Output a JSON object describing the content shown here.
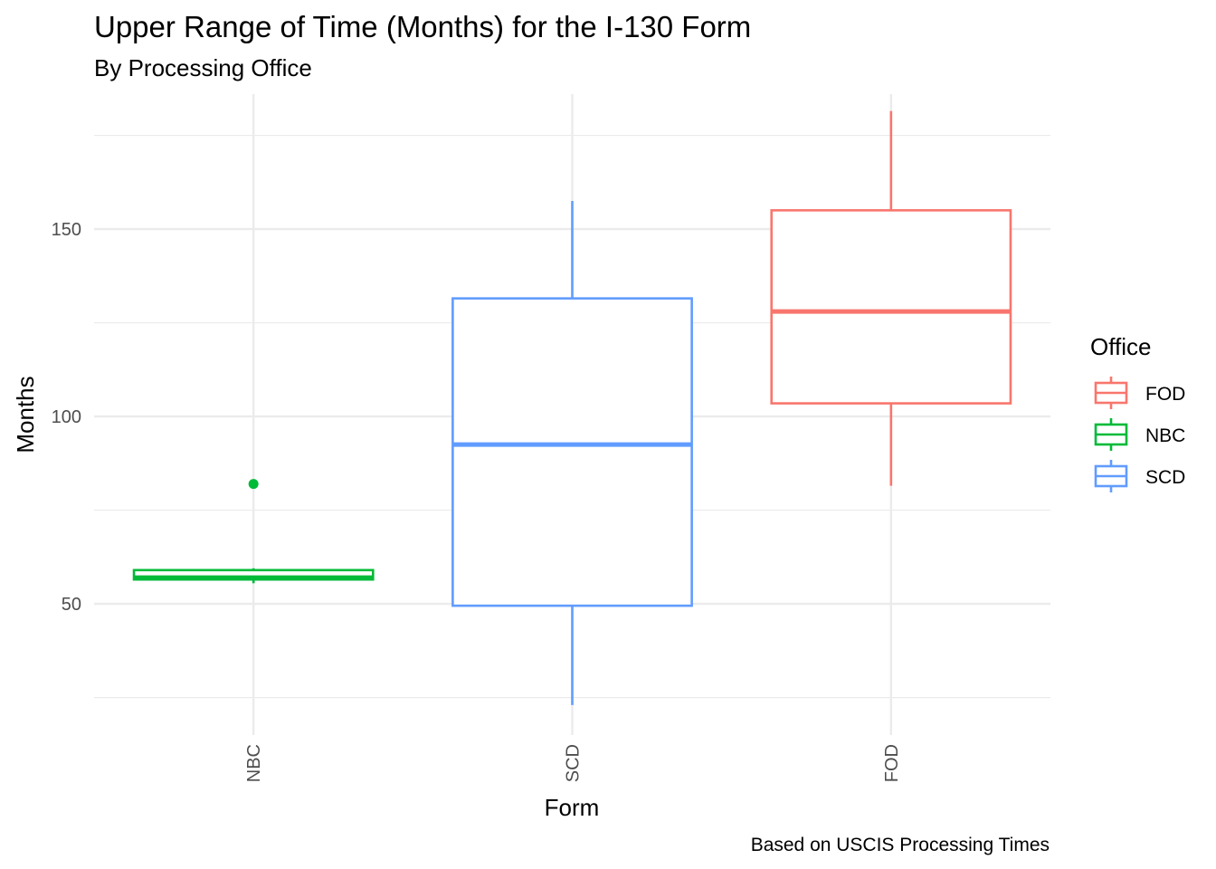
{
  "chart_data": {
    "type": "boxplot",
    "title": "Upper Range of Time (Months) for the I-130 Form",
    "subtitle": "By Processing Office",
    "xlabel": "Form",
    "ylabel": "Months",
    "caption": "Based on USCIS Processing Times",
    "ylim": [
      15,
      186
    ],
    "y_ticks": [
      50,
      100,
      150
    ],
    "y_minor_ticks": [
      25,
      75,
      125,
      175
    ],
    "grid": true,
    "categories": [
      "NBC",
      "SCD",
      "FOD"
    ],
    "boxes": [
      {
        "category": "NBC",
        "office": "NBC",
        "min": 55.5,
        "q1": 56.5,
        "median": 57,
        "q3": 59,
        "max": 59.5,
        "outliers": [
          82
        ]
      },
      {
        "category": "SCD",
        "office": "SCD",
        "min": 23,
        "q1": 49.5,
        "median": 92.5,
        "q3": 131.5,
        "max": 157.5,
        "outliers": []
      },
      {
        "category": "FOD",
        "office": "FOD",
        "min": 81.5,
        "q1": 103.5,
        "median": 128,
        "q3": 155,
        "max": 181.5,
        "outliers": []
      }
    ],
    "legend": {
      "title": "Office",
      "position": "right",
      "entries": [
        "FOD",
        "NBC",
        "SCD"
      ]
    },
    "colors": {
      "FOD": "#F8766D",
      "NBC": "#00BA38",
      "SCD": "#619CFF"
    }
  }
}
